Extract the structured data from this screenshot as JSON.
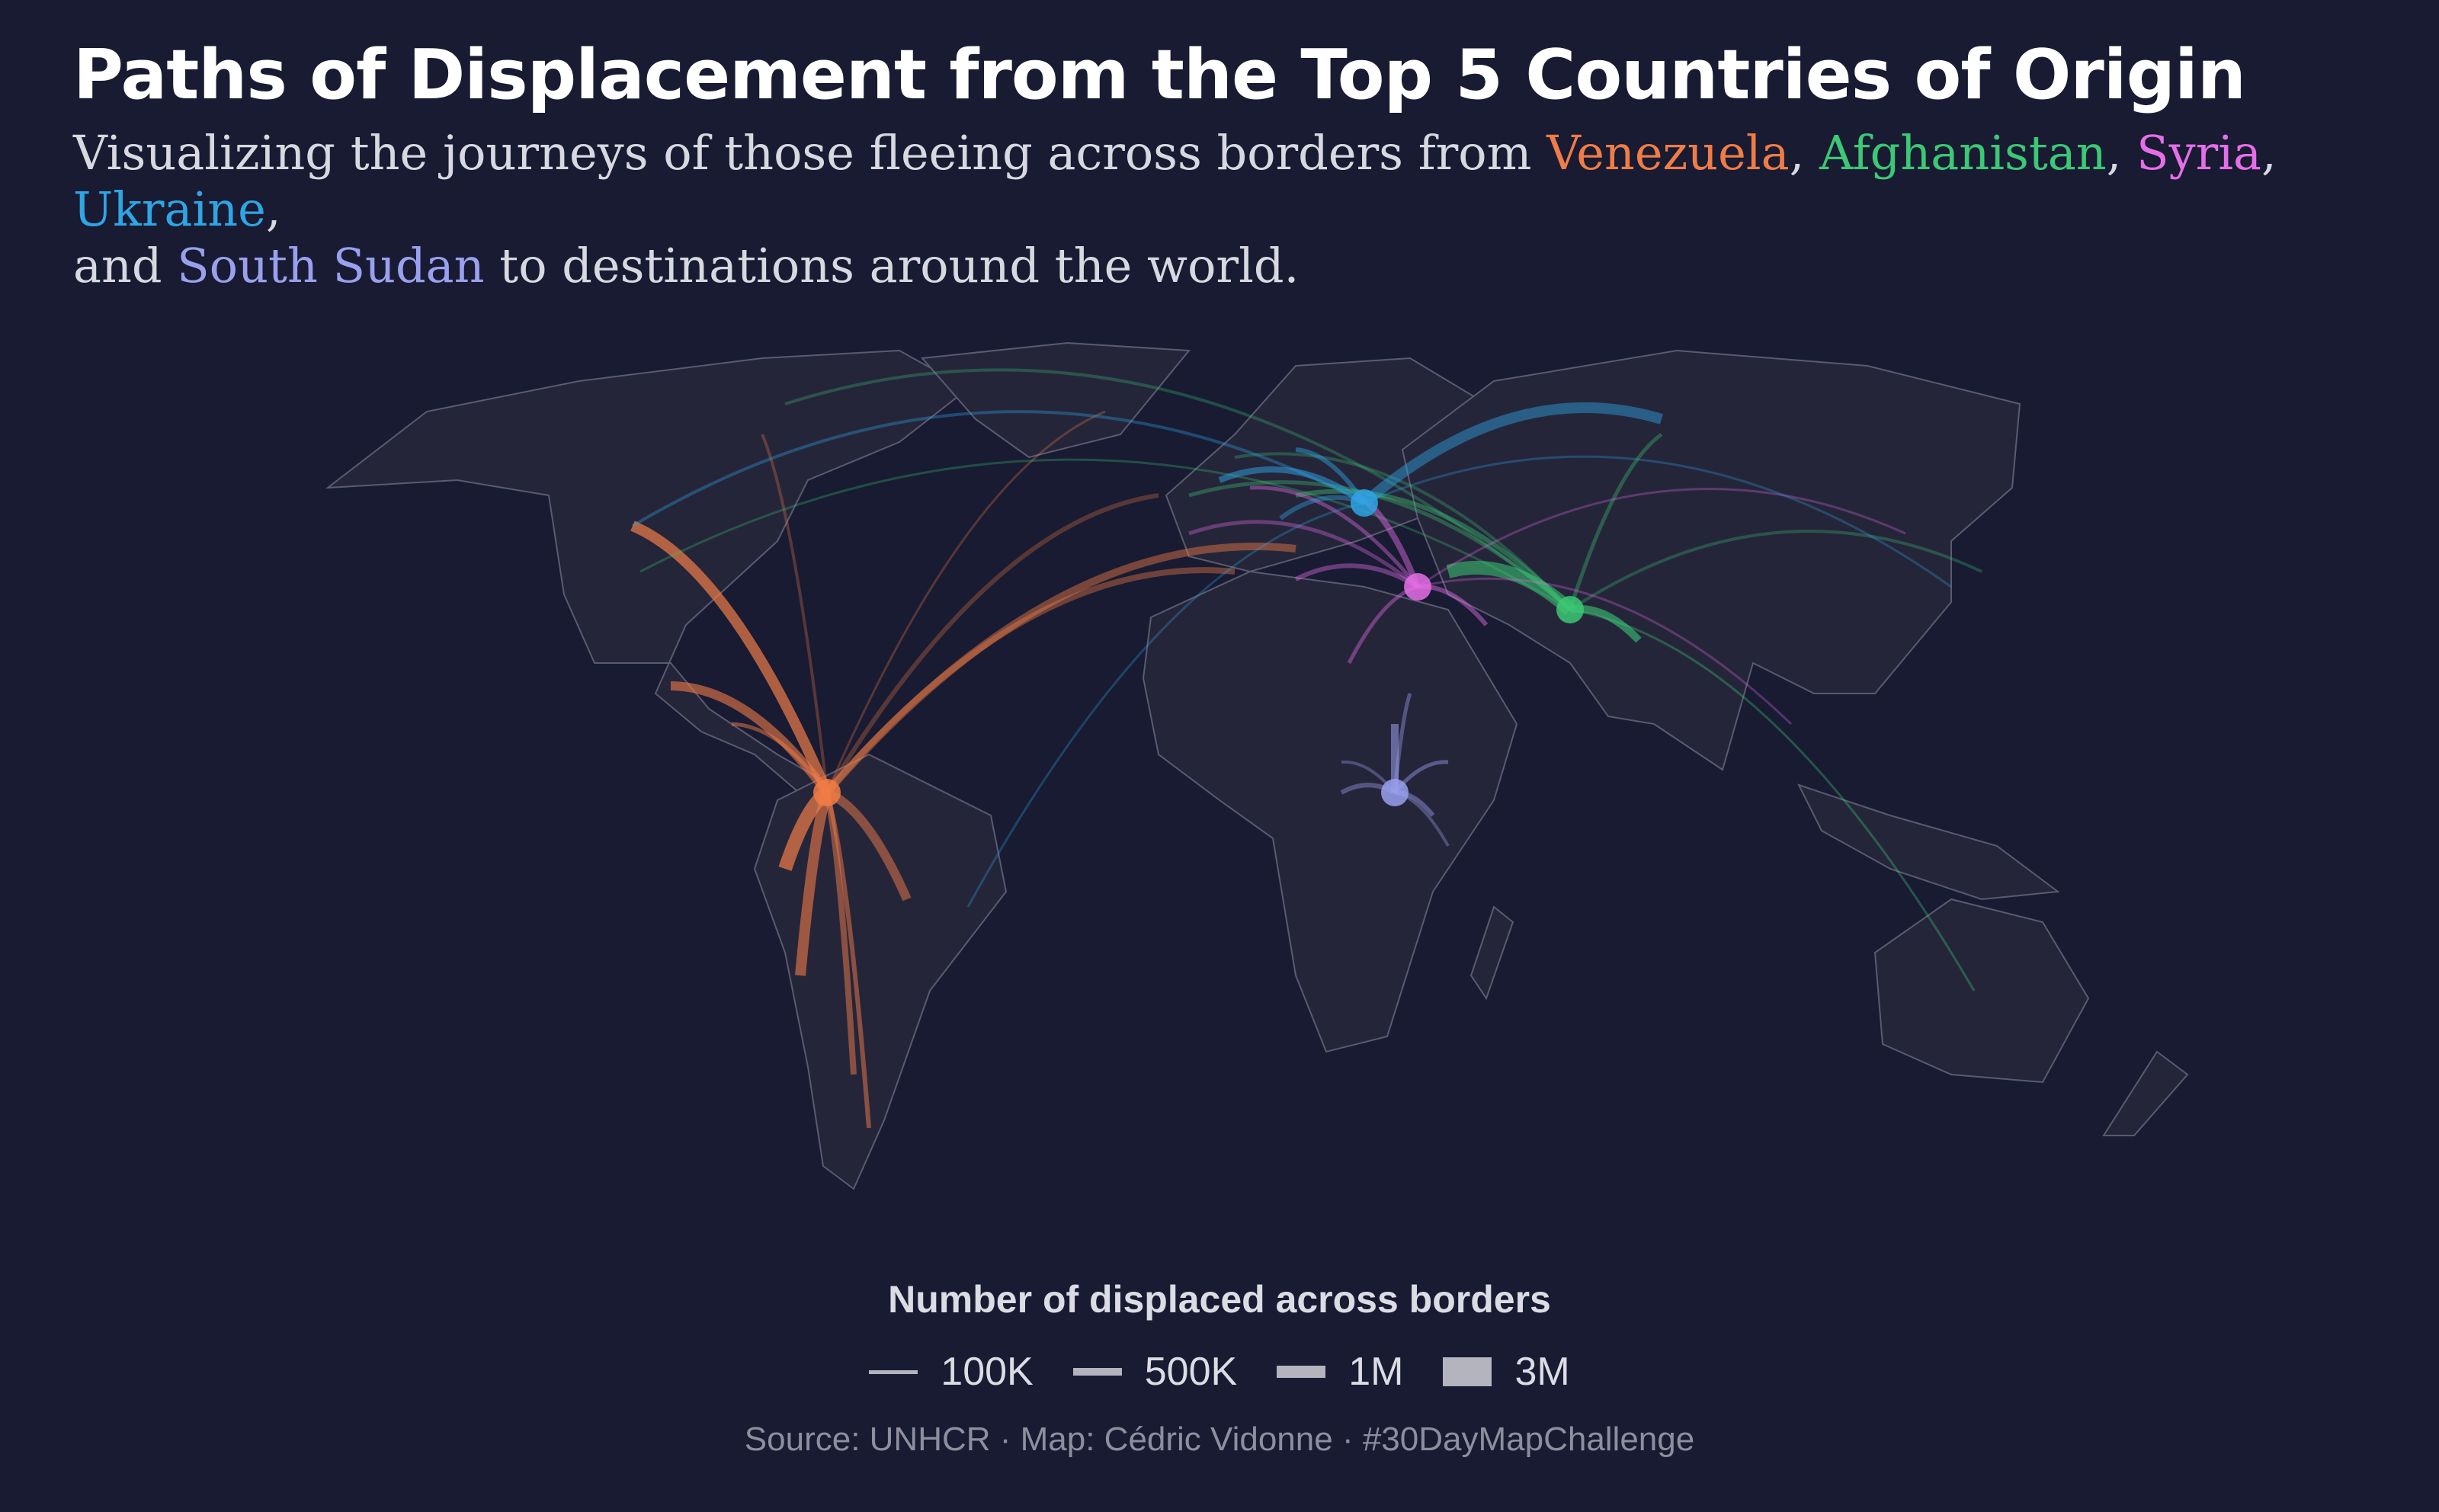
{
  "title": "Paths of Displacement from the Top 5 Countries of Origin",
  "subtitle": {
    "prefix": "Visualizing the journeys of those fleeing across borders from ",
    "sep1": ",",
    "sep2": ",",
    "sep3": ",",
    "sep4": ",",
    "line2_prefix": "and ",
    "suffix": " to destinations around the world."
  },
  "origins": [
    {
      "name": "Venezuela",
      "color": "#f07c47"
    },
    {
      "name": "Afghanistan",
      "color": "#3cc874"
    },
    {
      "name": "Syria",
      "color": "#e66ee8"
    },
    {
      "name": "Ukraine",
      "color": "#2fa5e5"
    },
    {
      "name": "South Sudan",
      "color": "#9aa0ee"
    }
  ],
  "legend": {
    "title": "Number of displaced across borders",
    "items": [
      {
        "label": "100K",
        "value": 100000
      },
      {
        "label": "500K",
        "value": 500000
      },
      {
        "label": "1M",
        "value": 1000000
      },
      {
        "label": "3M",
        "value": 3000000
      }
    ]
  },
  "source": "Source: UNHCR · Map: Cédric Vidonne · #30DayMapChallenge",
  "colors": {
    "background": "#181b32",
    "land": "#25253a",
    "border": "#5a5a70"
  }
}
